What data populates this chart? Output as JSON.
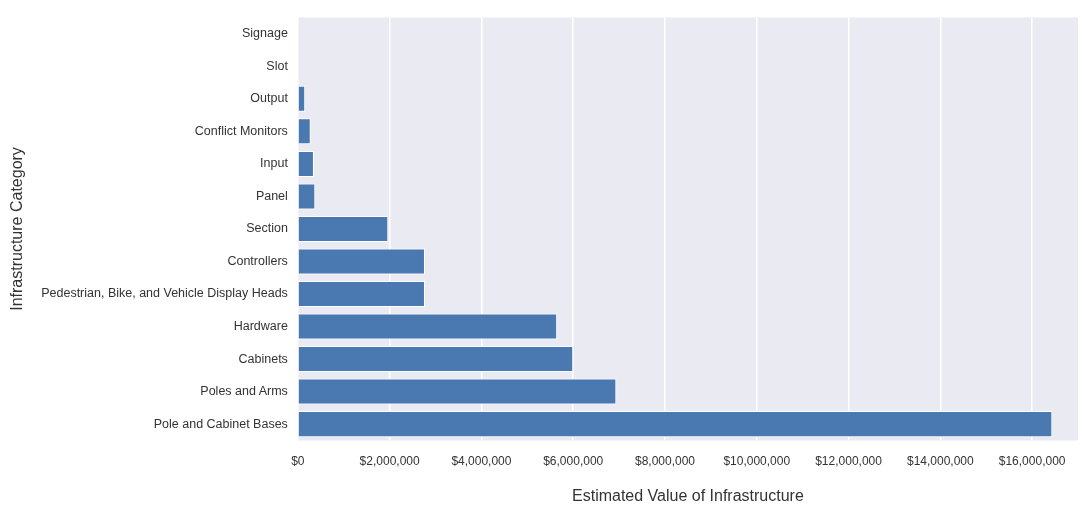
{
  "chart_data": {
    "type": "bar",
    "orientation": "horizontal",
    "xlabel": "Estimated Value of Infrastructure",
    "ylabel": "Infrastructure Category",
    "categories": [
      "Signage",
      "Slot",
      "Output",
      "Conflict Monitors",
      "Input",
      "Panel",
      "Section",
      "Controllers",
      "Pedestrian, Bike, and Vehicle Display Heads",
      "Hardware",
      "Cabinets",
      "Poles and Arms",
      "Pole and Cabinet Bases"
    ],
    "values": [
      0,
      0,
      160000,
      280000,
      350000,
      380000,
      1970000,
      2770000,
      2770000,
      5650000,
      6000000,
      6940000,
      16440000
    ],
    "color": "#4a78b0",
    "xlim": [
      0,
      17000000
    ],
    "xticks": [
      {
        "value": 0,
        "label": "$0"
      },
      {
        "value": 2000000,
        "label": "$2,000,000"
      },
      {
        "value": 4000000,
        "label": "$4,000,000"
      },
      {
        "value": 6000000,
        "label": "$6,000,000"
      },
      {
        "value": 8000000,
        "label": "$8,000,000"
      },
      {
        "value": 10000000,
        "label": "$10,000,000"
      },
      {
        "value": 12000000,
        "label": "$12,000,000"
      },
      {
        "value": 14000000,
        "label": "$14,000,000"
      },
      {
        "value": 16000000,
        "label": "$16,000,000"
      }
    ],
    "grid": "x",
    "legend": false
  }
}
